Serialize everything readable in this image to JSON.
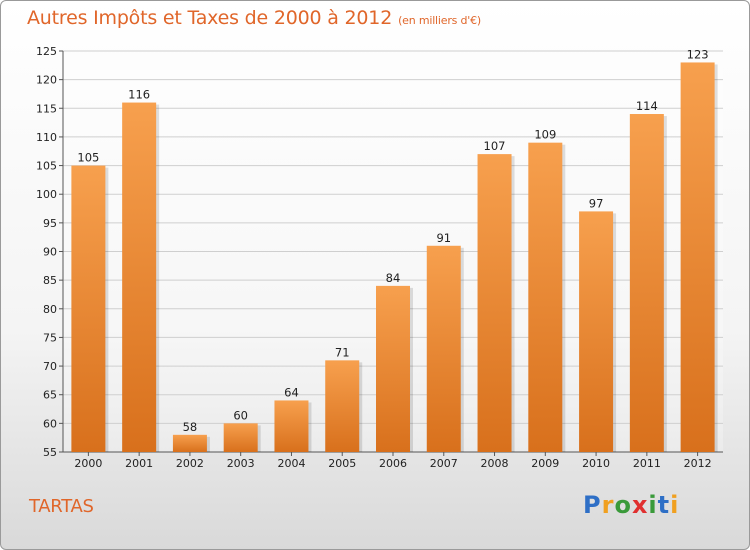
{
  "header": {
    "title": "Autres Impôts et Taxes de 2000 à 2012",
    "unit": "(en milliers d'€)"
  },
  "footer": {
    "city": "TARTAS",
    "logo": {
      "text": "Proxiti",
      "letters": [
        {
          "char": "P",
          "color": "#2e6fc6"
        },
        {
          "char": "r",
          "color": "#f0a020"
        },
        {
          "char": "o",
          "color": "#3a9a3a"
        },
        {
          "char": "x",
          "color": "#e03030"
        },
        {
          "char": "i",
          "color": "#3a9a3a"
        },
        {
          "char": "t",
          "color": "#2e6fc6"
        },
        {
          "char": "i",
          "color": "#f0a020"
        }
      ]
    }
  },
  "colors": {
    "title": "#e0662a",
    "bar_light": "#f7a04e",
    "bar_dark": "#d8701c",
    "grid": "#cfcfcf"
  },
  "chart_data": {
    "type": "bar",
    "categories": [
      "2000",
      "2001",
      "2002",
      "2003",
      "2004",
      "2005",
      "2006",
      "2007",
      "2008",
      "2009",
      "2010",
      "2011",
      "2012"
    ],
    "values": [
      105,
      116,
      58,
      60,
      64,
      71,
      84,
      91,
      107,
      109,
      97,
      114,
      123
    ],
    "ylim": [
      55,
      125
    ],
    "yticks": [
      55,
      60,
      65,
      70,
      75,
      80,
      85,
      90,
      95,
      100,
      105,
      110,
      115,
      120,
      125
    ],
    "grid": true,
    "data_labels": true
  }
}
